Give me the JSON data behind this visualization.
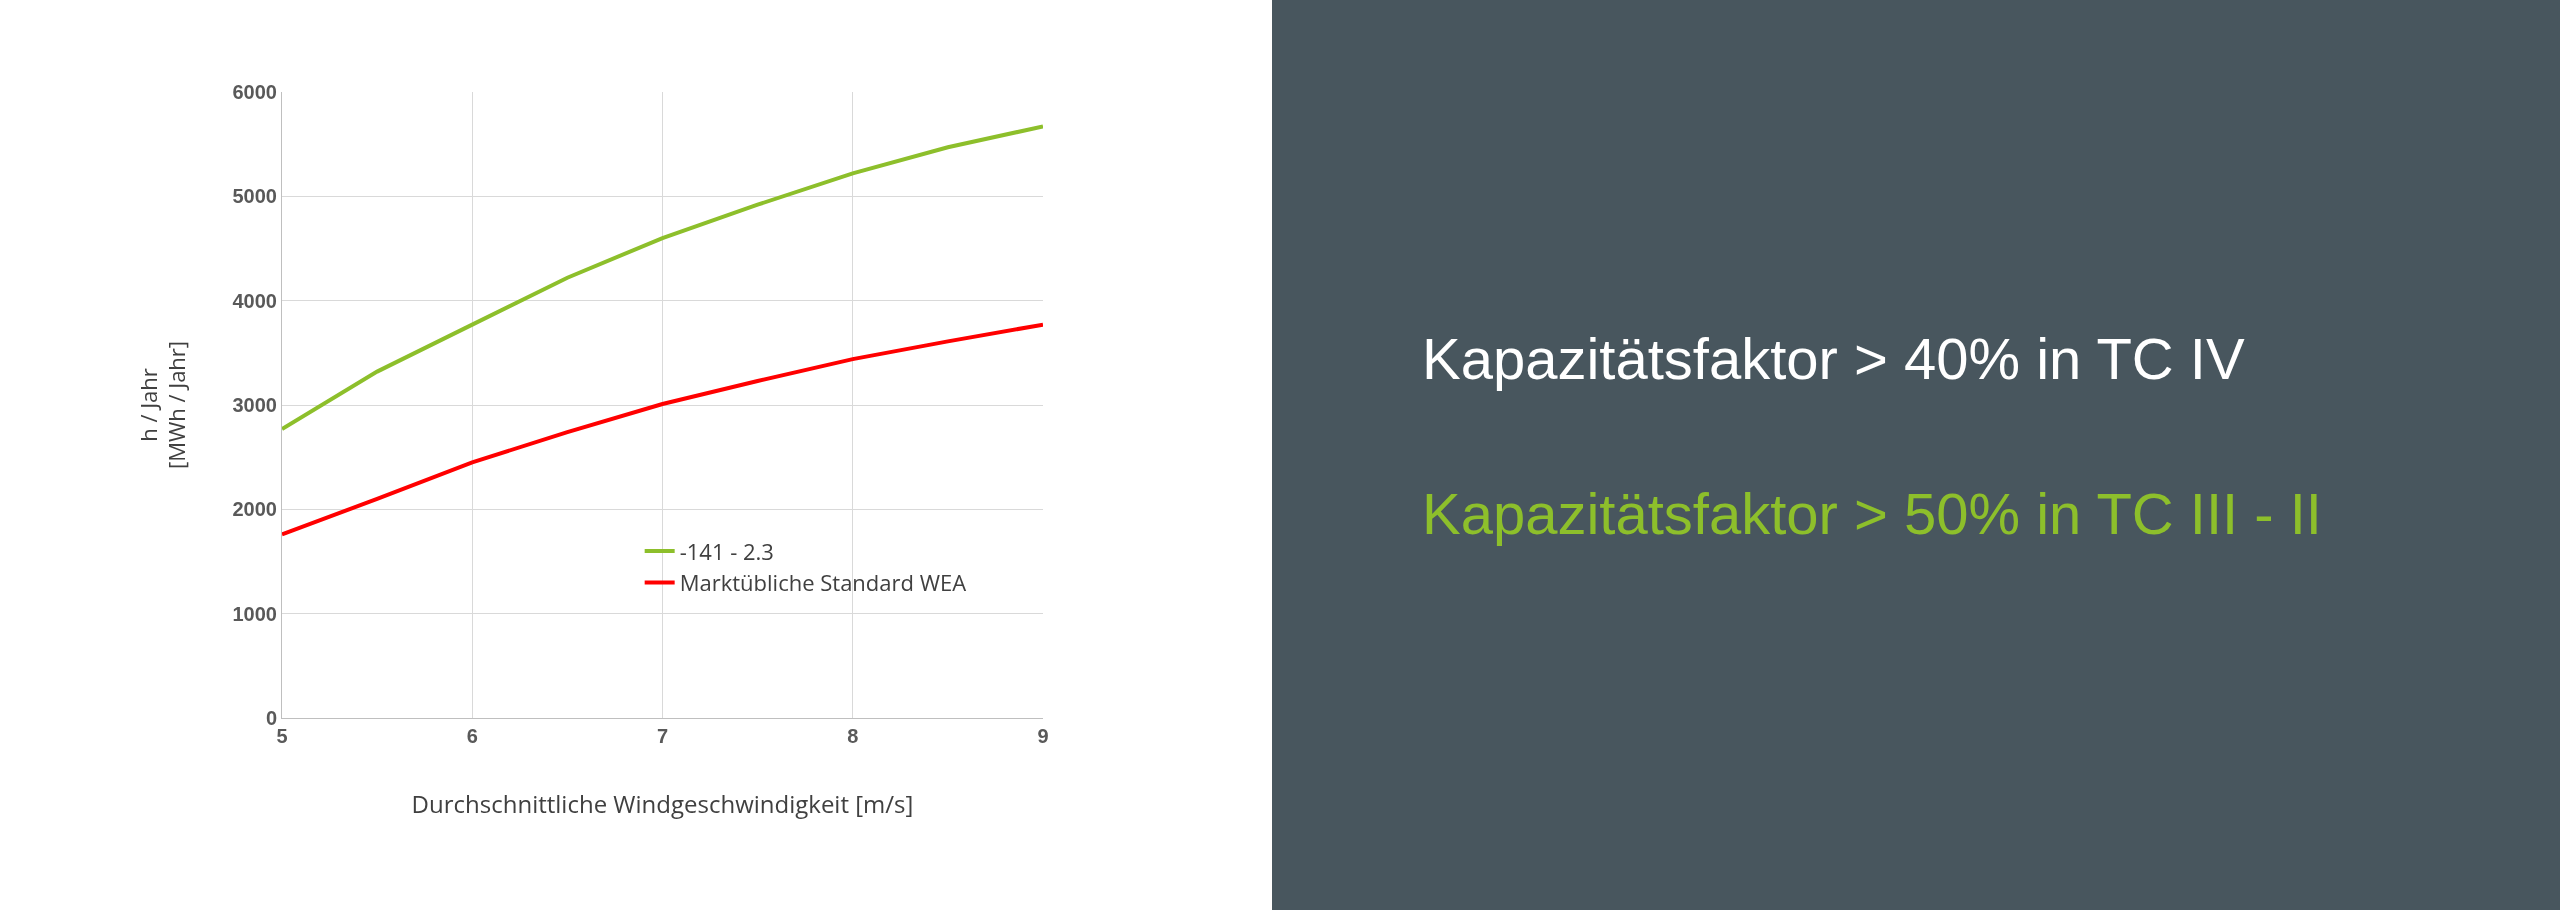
{
  "chart_data": [
    {
      "type": "line",
      "xlabel": "Durchschnittliche Windgeschwindigkeit [m/s]",
      "ylabel": "h / Jahr\n[MWh / Jahr]",
      "x": [
        5,
        5.5,
        6,
        6.5,
        7,
        7.5,
        8,
        8.5,
        9
      ],
      "series": [
        {
          "name": "-141 - 2.3",
          "color": "#8dbf2b",
          "values": [
            2770,
            3320,
            3770,
            4220,
            4600,
            4920,
            5220,
            5470,
            5670
          ]
        },
        {
          "name": "Marktübliche Standard WEA",
          "color": "#ff0000",
          "values": [
            1760,
            2100,
            2450,
            2740,
            3010,
            3230,
            3440,
            3610,
            3770
          ]
        }
      ],
      "xlim": [
        5,
        9
      ],
      "xticks": [
        5,
        6,
        7,
        8,
        9
      ],
      "ylim": [
        0,
        6000
      ],
      "yticks": [
        0,
        1000,
        2000,
        3000,
        4000,
        5000,
        6000
      ],
      "grid": true,
      "legend": "bottom right",
      "marker": "none",
      "line_style": "solid"
    },
    {
      "type": "other",
      "annotations": [
        "Kapazitätsfaktor > 40% in TC IV",
        "Kapazitätsfaktor > 50% in TC III - II"
      ],
      "colors": [
        "#ffffff",
        "#8dbf2b"
      ]
    }
  ]
}
